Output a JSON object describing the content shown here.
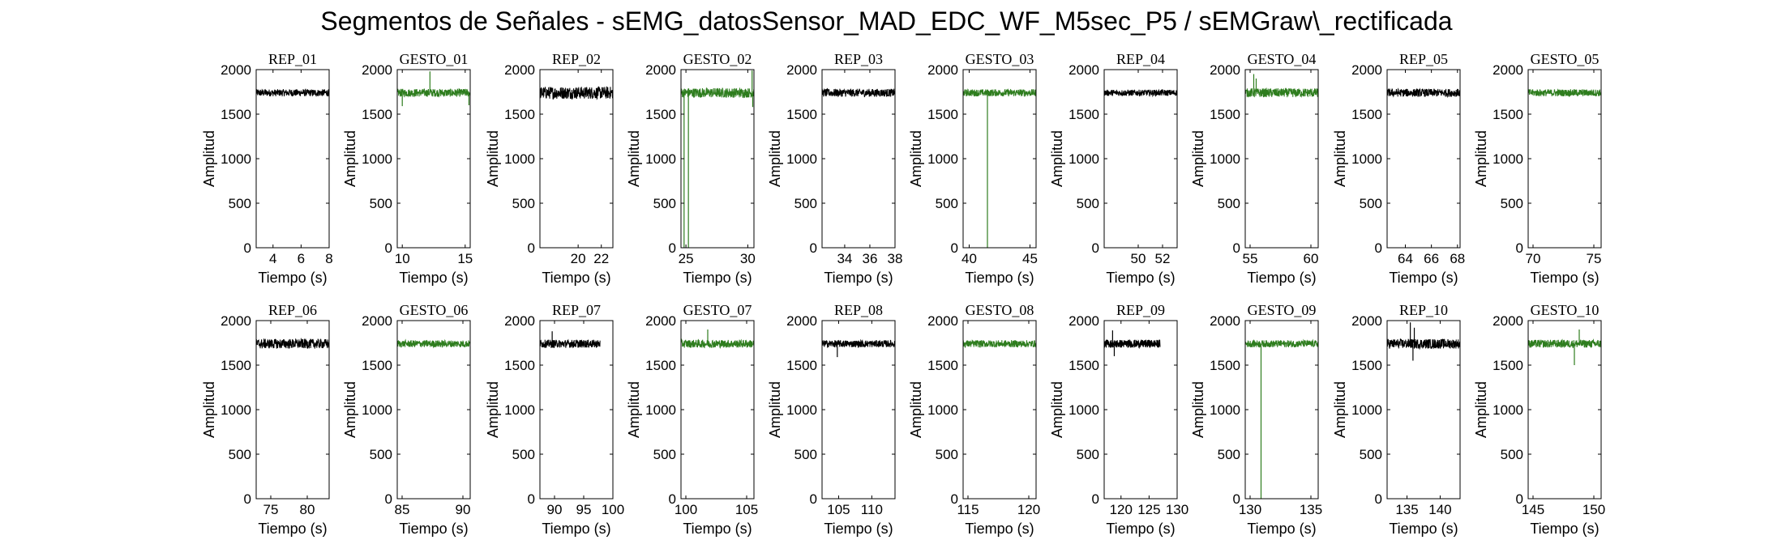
{
  "figure": {
    "title": "Segmentos de Señales - sEMG_datosSensor_MAD_EDC_WF_M5sec_P5 / sEMGraw\\_rectificada"
  },
  "colors": {
    "rep": "#000000",
    "gesto": "#2e7d1e",
    "axes": "#000000"
  },
  "chart_data": [
    {
      "type": "line",
      "title": "REP_01",
      "xlabel": "Tiempo (s)",
      "ylabel": "Amplitud",
      "xlim": [
        2.8,
        8.0
      ],
      "ylim": [
        0,
        2000
      ],
      "xticks": [
        4,
        6,
        8
      ],
      "yticks": [
        0,
        500,
        1000,
        1500,
        2000
      ],
      "series": [
        {
          "x": [
            2.8,
            8.0
          ],
          "y": [
            1740,
            1740
          ],
          "noise": 40,
          "spikes": []
        }
      ]
    },
    {
      "type": "line",
      "title": "GESTO_01",
      "xlabel": "Tiempo (s)",
      "ylabel": "Amplitud",
      "xlim": [
        9.6,
        15.4
      ],
      "ylim": [
        0,
        2000
      ],
      "xticks": [
        10,
        15
      ],
      "yticks": [
        0,
        500,
        1000,
        1500,
        2000
      ],
      "series": [
        {
          "x": [
            9.6,
            15.4
          ],
          "y": [
            1740,
            1740
          ],
          "noise": 45,
          "spikes": [
            [
              12.2,
              1980
            ],
            [
              10.0,
              1590
            ],
            [
              15.3,
              1600
            ]
          ]
        }
      ]
    },
    {
      "type": "line",
      "title": "REP_02",
      "xlabel": "Tiempo (s)",
      "ylabel": "Amplitud",
      "xlim": [
        16.7,
        23.0
      ],
      "ylim": [
        0,
        2000
      ],
      "xticks": [
        20,
        22
      ],
      "yticks": [
        0,
        500,
        1000,
        1500,
        2000
      ],
      "series": [
        {
          "x": [
            16.7,
            23.0
          ],
          "y": [
            1740,
            1740
          ],
          "noise": 70,
          "spikes": []
        }
      ]
    },
    {
      "type": "line",
      "title": "GESTO_02",
      "xlabel": "Tiempo (s)",
      "ylabel": "Amplitud",
      "xlim": [
        24.6,
        30.5
      ],
      "ylim": [
        0,
        2000
      ],
      "xticks": [
        25,
        30
      ],
      "yticks": [
        0,
        500,
        1000,
        1500,
        2000
      ],
      "series": [
        {
          "x": [
            24.6,
            30.5
          ],
          "y": [
            1740,
            1740
          ],
          "noise": 55,
          "spikes": [
            [
              24.85,
              0
            ],
            [
              25.2,
              0
            ],
            [
              30.4,
              1580
            ],
            [
              30.35,
              1990
            ]
          ]
        }
      ]
    },
    {
      "type": "line",
      "title": "REP_03",
      "xlabel": "Tiempo (s)",
      "ylabel": "Amplitud",
      "xlim": [
        32.2,
        38.0
      ],
      "ylim": [
        0,
        2000
      ],
      "xticks": [
        34,
        36,
        38
      ],
      "yticks": [
        0,
        500,
        1000,
        1500,
        2000
      ],
      "series": [
        {
          "x": [
            32.2,
            38.0
          ],
          "y": [
            1740,
            1740
          ],
          "noise": 45,
          "spikes": []
        }
      ]
    },
    {
      "type": "line",
      "title": "GESTO_03",
      "xlabel": "Tiempo (s)",
      "ylabel": "Amplitud",
      "xlim": [
        39.5,
        45.5
      ],
      "ylim": [
        0,
        2000
      ],
      "xticks": [
        40,
        45
      ],
      "yticks": [
        0,
        500,
        1000,
        1500,
        2000
      ],
      "series": [
        {
          "x": [
            39.5,
            45.5
          ],
          "y": [
            1740,
            1740
          ],
          "noise": 40,
          "spikes": [
            [
              41.5,
              0
            ]
          ]
        }
      ]
    },
    {
      "type": "line",
      "title": "REP_04",
      "xlabel": "Tiempo (s)",
      "ylabel": "Amplitud",
      "xlim": [
        47.2,
        53.2
      ],
      "ylim": [
        0,
        2000
      ],
      "xticks": [
        50,
        52
      ],
      "yticks": [
        0,
        500,
        1000,
        1500,
        2000
      ],
      "series": [
        {
          "x": [
            47.2,
            53.2
          ],
          "y": [
            1740,
            1740
          ],
          "noise": 35,
          "spikes": []
        }
      ]
    },
    {
      "type": "line",
      "title": "GESTO_04",
      "xlabel": "Tiempo (s)",
      "ylabel": "Amplitud",
      "xlim": [
        54.6,
        60.6
      ],
      "ylim": [
        0,
        2000
      ],
      "xticks": [
        55,
        60
      ],
      "yticks": [
        0,
        500,
        1000,
        1500,
        2000
      ],
      "series": [
        {
          "x": [
            54.6,
            60.6
          ],
          "y": [
            1740,
            1740
          ],
          "noise": 50,
          "spikes": [
            [
              55.3,
              1950
            ],
            [
              55.5,
              1900
            ]
          ]
        }
      ]
    },
    {
      "type": "line",
      "title": "REP_05",
      "xlabel": "Tiempo (s)",
      "ylabel": "Amplitud",
      "xlim": [
        62.6,
        68.2
      ],
      "ylim": [
        0,
        2000
      ],
      "xticks": [
        64,
        66,
        68
      ],
      "yticks": [
        0,
        500,
        1000,
        1500,
        2000
      ],
      "series": [
        {
          "x": [
            62.6,
            68.2
          ],
          "y": [
            1740,
            1740
          ],
          "noise": 45,
          "spikes": []
        }
      ]
    },
    {
      "type": "line",
      "title": "GESTO_05",
      "xlabel": "Tiempo (s)",
      "ylabel": "Amplitud",
      "xlim": [
        69.6,
        75.6
      ],
      "ylim": [
        0,
        2000
      ],
      "xticks": [
        70,
        75
      ],
      "yticks": [
        0,
        500,
        1000,
        1500,
        2000
      ],
      "series": [
        {
          "x": [
            69.6,
            75.6
          ],
          "y": [
            1740,
            1740
          ],
          "noise": 40,
          "spikes": []
        }
      ]
    },
    {
      "type": "line",
      "title": "REP_06",
      "xlabel": "Tiempo (s)",
      "ylabel": "Amplitud",
      "xlim": [
        73.0,
        83.0
      ],
      "ylim": [
        0,
        2000
      ],
      "xticks": [
        75,
        80
      ],
      "yticks": [
        0,
        500,
        1000,
        1500,
        2000
      ],
      "series": [
        {
          "x": [
            73.0,
            83.0
          ],
          "y": [
            1740,
            1740
          ],
          "noise": 55,
          "spikes": []
        }
      ]
    },
    {
      "type": "line",
      "title": "GESTO_06",
      "xlabel": "Tiempo (s)",
      "ylabel": "Amplitud",
      "xlim": [
        84.6,
        90.6
      ],
      "ylim": [
        0,
        2000
      ],
      "xticks": [
        85,
        90
      ],
      "yticks": [
        0,
        500,
        1000,
        1500,
        2000
      ],
      "series": [
        {
          "x": [
            84.6,
            90.6
          ],
          "y": [
            1740,
            1740
          ],
          "noise": 40,
          "spikes": []
        }
      ]
    },
    {
      "type": "line",
      "title": "REP_07",
      "xlabel": "Tiempo (s)",
      "ylabel": "Amplitud",
      "xlim": [
        87.5,
        100.0
      ],
      "ylim": [
        0,
        2000
      ],
      "xticks": [
        90,
        95,
        100
      ],
      "yticks": [
        0,
        500,
        1000,
        1500,
        2000
      ],
      "series": [
        {
          "x": [
            87.5,
            97.8
          ],
          "y": [
            1740,
            1740
          ],
          "noise": 45,
          "spikes": [
            [
              89.6,
              1880
            ]
          ]
        }
      ]
    },
    {
      "type": "line",
      "title": "GESTO_07",
      "xlabel": "Tiempo (s)",
      "ylabel": "Amplitud",
      "xlim": [
        99.6,
        105.6
      ],
      "ylim": [
        0,
        2000
      ],
      "xticks": [
        100,
        105
      ],
      "yticks": [
        0,
        500,
        1000,
        1500,
        2000
      ],
      "series": [
        {
          "x": [
            99.6,
            105.6
          ],
          "y": [
            1740,
            1740
          ],
          "noise": 45,
          "spikes": [
            [
              101.8,
              1900
            ]
          ]
        }
      ]
    },
    {
      "type": "line",
      "title": "REP_08",
      "xlabel": "Tiempo (s)",
      "ylabel": "Amplitud",
      "xlim": [
        102.5,
        113.5
      ],
      "ylim": [
        0,
        2000
      ],
      "xticks": [
        105,
        110
      ],
      "yticks": [
        0,
        500,
        1000,
        1500,
        2000
      ],
      "series": [
        {
          "x": [
            102.5,
            113.5
          ],
          "y": [
            1740,
            1740
          ],
          "noise": 40,
          "spikes": [
            [
              104.8,
              1590
            ]
          ]
        }
      ]
    },
    {
      "type": "line",
      "title": "GESTO_08",
      "xlabel": "Tiempo (s)",
      "ylabel": "Amplitud",
      "xlim": [
        114.6,
        120.6
      ],
      "ylim": [
        0,
        2000
      ],
      "xticks": [
        115,
        120
      ],
      "yticks": [
        0,
        500,
        1000,
        1500,
        2000
      ],
      "series": [
        {
          "x": [
            114.6,
            120.6
          ],
          "y": [
            1740,
            1740
          ],
          "noise": 40,
          "spikes": []
        }
      ]
    },
    {
      "type": "line",
      "title": "REP_09",
      "xlabel": "Tiempo (s)",
      "ylabel": "Amplitud",
      "xlim": [
        117.0,
        130.0
      ],
      "ylim": [
        0,
        2000
      ],
      "xticks": [
        120,
        125,
        130
      ],
      "yticks": [
        0,
        500,
        1000,
        1500,
        2000
      ],
      "series": [
        {
          "x": [
            117.0,
            127.0
          ],
          "y": [
            1740,
            1740
          ],
          "noise": 45,
          "spikes": [
            [
              118.5,
              1890
            ],
            [
              118.8,
              1600
            ]
          ]
        }
      ]
    },
    {
      "type": "line",
      "title": "GESTO_09",
      "xlabel": "Tiempo (s)",
      "ylabel": "Amplitud",
      "xlim": [
        129.6,
        135.6
      ],
      "ylim": [
        0,
        2000
      ],
      "xticks": [
        130,
        135
      ],
      "yticks": [
        0,
        500,
        1000,
        1500,
        2000
      ],
      "series": [
        {
          "x": [
            129.6,
            135.6
          ],
          "y": [
            1740,
            1740
          ],
          "noise": 40,
          "spikes": [
            [
              130.9,
              0
            ]
          ]
        }
      ]
    },
    {
      "type": "line",
      "title": "REP_10",
      "xlabel": "Tiempo (s)",
      "ylabel": "Amplitud",
      "xlim": [
        132.0,
        143.0
      ],
      "ylim": [
        0,
        2000
      ],
      "xticks": [
        135,
        140
      ],
      "yticks": [
        0,
        500,
        1000,
        1500,
        2000
      ],
      "series": [
        {
          "x": [
            132.0,
            143.0
          ],
          "y": [
            1740,
            1740
          ],
          "noise": 55,
          "spikes": [
            [
              135.5,
              1980
            ],
            [
              135.9,
              1550
            ],
            [
              136.1,
              1920
            ]
          ]
        }
      ]
    },
    {
      "type": "line",
      "title": "GESTO_10",
      "xlabel": "Tiempo (s)",
      "ylabel": "Amplitud",
      "xlim": [
        144.6,
        150.6
      ],
      "ylim": [
        0,
        2000
      ],
      "xticks": [
        145,
        150
      ],
      "yticks": [
        0,
        500,
        1000,
        1500,
        2000
      ],
      "series": [
        {
          "x": [
            144.6,
            150.6
          ],
          "y": [
            1740,
            1740
          ],
          "noise": 45,
          "spikes": [
            [
              148.8,
              1900
            ],
            [
              148.4,
              1500
            ]
          ]
        }
      ]
    }
  ]
}
